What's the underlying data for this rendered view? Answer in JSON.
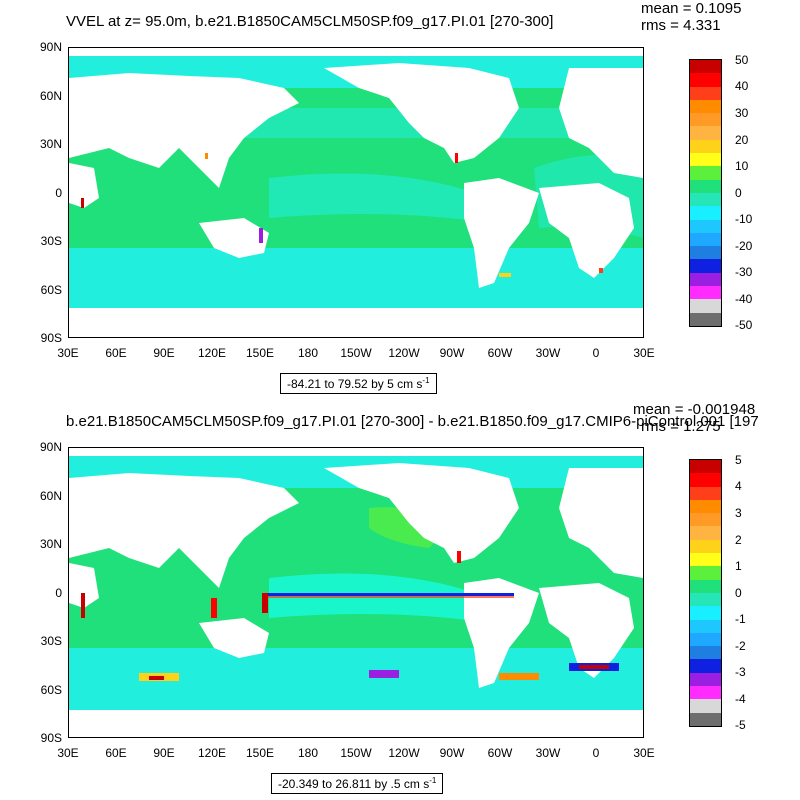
{
  "colors": {
    "ocean_main": "#1fe07a",
    "ocean_cyan": "#22eedd",
    "ocean_aqua": "#18ffee",
    "land": "#ffffff",
    "palette": [
      "#6e6e6e",
      "#d8d8d8",
      "#ff2bff",
      "#9a1fe0",
      "#1020e0",
      "#1e7fe0",
      "#1ea8ff",
      "#1ec8ff",
      "#18f0ff",
      "#26e6b8",
      "#1fe07a",
      "#5cf03c",
      "#ffff1a",
      "#ffd21a",
      "#ffb340",
      "#ff9a26",
      "#ff8c00",
      "#ff3f1a",
      "#ff0000",
      "#c80000"
    ]
  },
  "panels": [
    {
      "id": "top",
      "title": "VVEL at z=  95.0m, b.e21.B1850CAM5CLM50SP.f09_g17.PI.01 [270-300]",
      "mean": "mean = 0.1095",
      "rms": "rms = 4.331",
      "range_text": "-84.21 to 79.52 by 5 cm s",
      "range_sup": "-1",
      "colorbar_labels": [
        "50",
        "40",
        "30",
        "20",
        "10",
        "0",
        "-10",
        "-20",
        "-30",
        "-40",
        "-50"
      ]
    },
    {
      "id": "bottom",
      "title": "b.e21.B1850CAM5CLM50SP.f09_g17.PI.01 [270-300] - b.e21.B1850.f09_g17.CMIP6-piControl.001 [197",
      "mean": "mean = -0.001948",
      "rms": "rms = 1.275",
      "range_text": "-20.349 to 26.811 by .5 cm s",
      "range_sup": "-1",
      "colorbar_labels": [
        "5",
        "4",
        "3",
        "2",
        "1",
        "0",
        "-1",
        "-2",
        "-3",
        "-4",
        "-5"
      ]
    }
  ],
  "axes": {
    "lat_labels": [
      "90N",
      "60N",
      "30N",
      "0",
      "30S",
      "60S",
      "90S"
    ],
    "lon_labels": [
      "30E",
      "60E",
      "90E",
      "120E",
      "150E",
      "180",
      "150W",
      "120W",
      "90W",
      "60W",
      "30W",
      "0",
      "30E"
    ]
  }
}
